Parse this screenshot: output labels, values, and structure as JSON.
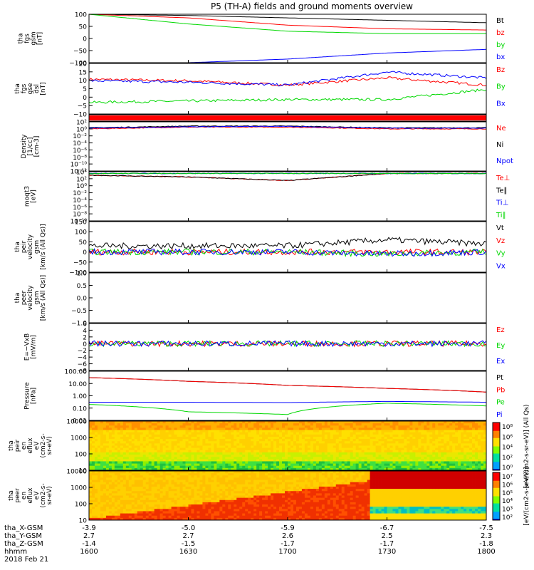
{
  "title": "P5 (TH-A) fields and ground moments overview",
  "x_axis": {
    "tick_labels": {
      "tha_X-GSM": [
        "-3.9",
        "-5.0",
        "-5.9",
        "-6.7",
        "-7.5"
      ],
      "tha_Y-GSM": [
        "2.7",
        "2.7",
        "2.6",
        "2.5",
        "2.3"
      ],
      "tha_Z-GSM": [
        "-1.4",
        "-1.5",
        "-1.7",
        "-1.7",
        "-1.8"
      ],
      "hhmm": [
        "1600",
        "1630",
        "1700",
        "1730",
        "1800"
      ]
    },
    "row_labels": [
      "tha_X-GSM",
      "tha_Y-GSM",
      "tha_Z-GSM",
      "hhmm"
    ],
    "date": "2018 Feb 21"
  },
  "colorbars": [
    {
      "label": "[eV/(cm2-s-sr-eV)] (All Qs)",
      "ticks": [
        "10⁸",
        "10⁶",
        "10⁴",
        "10²",
        "10⁰"
      ]
    },
    {
      "label": "[eV/(cm2-s-sr-eV)]",
      "ticks": [
        "10⁷",
        "10⁶",
        "10⁵",
        "10⁴",
        "10³",
        "10²"
      ]
    }
  ],
  "colors": {
    "black": "#000000",
    "red": "#ff0000",
    "green": "#00d800",
    "blue": "#0000ff"
  },
  "chart_data": [
    {
      "id": "fgs_gsm",
      "type": "line",
      "ylabel": [
        "tha",
        "fgs",
        "gsm",
        "[nT]"
      ],
      "ylim": [
        -100,
        100
      ],
      "yticks": [
        "100",
        "50",
        "0",
        "−50",
        "−100"
      ],
      "x": [
        1600,
        1630,
        1700,
        1730,
        1800
      ],
      "series": [
        {
          "name": "Bt",
          "color": "#000000",
          "values": [
            100,
            95,
            85,
            75,
            65
          ]
        },
        {
          "name": "bz",
          "color": "#ff0000",
          "values": [
            100,
            85,
            55,
            40,
            35
          ]
        },
        {
          "name": "by",
          "color": "#00d800",
          "values": [
            100,
            60,
            30,
            20,
            20
          ]
        },
        {
          "name": "bx",
          "color": "#0000ff",
          "values": [
            -100,
            -100,
            -85,
            -60,
            -45
          ]
        }
      ]
    },
    {
      "id": "fgs_gse",
      "type": "line",
      "ylabel": [
        "tha",
        "fgs",
        "gse",
        "dsl",
        "[nT]"
      ],
      "ylim": [
        -15,
        20
      ],
      "yticks": [
        "20",
        "15",
        "10",
        "5",
        "0",
        "−5",
        "−10"
      ],
      "x": [
        1600,
        1630,
        1700,
        1730,
        1800
      ],
      "series": [
        {
          "name": "Bz",
          "color": "#ff0000",
          "values": [
            9,
            8,
            5,
            10,
            5
          ]
        },
        {
          "name": "By",
          "color": "#00d800",
          "values": [
            -7,
            -6,
            -5,
            -5,
            2
          ]
        },
        {
          "name": "Bx",
          "color": "#0000ff",
          "values": [
            8,
            7,
            5,
            14,
            10
          ]
        }
      ]
    },
    {
      "id": "density",
      "type": "line",
      "ylabel": [
        "Density",
        "[1/cc]",
        "[cm-3]"
      ],
      "ylim": [
        -12,
        2
      ],
      "yticks": [
        "10²",
        "10⁰",
        "10⁻²",
        "10⁻⁴",
        "10⁻⁶",
        "10⁻⁸",
        "10⁻¹⁰",
        "10⁻¹²"
      ],
      "x": [
        1600,
        1630,
        1700,
        1730,
        1800
      ],
      "series": [
        {
          "name": "Ne",
          "color": "#ff0000",
          "values": [
            0,
            0.5,
            0.5,
            0,
            0
          ]
        },
        {
          "name": "Ni",
          "color": "#000000",
          "values": [
            0.3,
            0.8,
            0.8,
            0.3,
            0.3
          ]
        },
        {
          "name": "Npot",
          "color": "#0000ff",
          "values": [
            0.2,
            0.6,
            0.7,
            0.2,
            0.2
          ]
        }
      ]
    },
    {
      "id": "temperature",
      "type": "line",
      "ylabel": [
        "moqt3",
        "[eV]"
      ],
      "ylim": [
        -10,
        4
      ],
      "yticks": [
        "10⁴",
        "10²",
        "10⁰",
        "10⁻²",
        "10⁻⁴",
        "10⁻⁶",
        "10⁻⁸",
        "10⁻¹⁰"
      ],
      "x": [
        1600,
        1630,
        1700,
        1730,
        1800
      ],
      "series": [
        {
          "name": "Te⊥",
          "color": "#ff0000",
          "values": [
            3,
            2.5,
            1.5,
            3.5,
            3.5
          ]
        },
        {
          "name": "Te∥",
          "color": "#000000",
          "values": [
            3,
            2.5,
            1.5,
            3.5,
            3.5
          ]
        },
        {
          "name": "Ti⊥",
          "color": "#0000ff",
          "values": [
            3.5,
            3.5,
            3.5,
            3.5,
            3.5
          ]
        },
        {
          "name": "Ti∥",
          "color": "#00d800",
          "values": [
            3.5,
            3.5,
            3.5,
            3.5,
            3.5
          ]
        }
      ]
    },
    {
      "id": "peir_velocity",
      "type": "line",
      "ylabel": [
        "tha",
        "peir",
        "velocity",
        "gsm",
        "[km/s (All Qs)]"
      ],
      "ylim": [
        -100,
        150
      ],
      "yticks": [
        "150",
        "100",
        "50",
        "0",
        "−50",
        "−100"
      ],
      "x": [
        1600,
        1630,
        1700,
        1730,
        1800
      ],
      "series": [
        {
          "name": "Vt",
          "color": "#000000",
          "values": [
            30,
            30,
            30,
            60,
            40
          ]
        },
        {
          "name": "Vz",
          "color": "#ff0000",
          "values": [
            0,
            0,
            0,
            0,
            0
          ]
        },
        {
          "name": "Vy",
          "color": "#00d800",
          "values": [
            0,
            0,
            0,
            -10,
            0
          ]
        },
        {
          "name": "Vx",
          "color": "#0000ff",
          "values": [
            0,
            0,
            0,
            -10,
            0
          ]
        }
      ]
    },
    {
      "id": "peer_velocity",
      "type": "line",
      "ylabel": [
        "tha",
        "peer",
        "velocity",
        "gsm",
        "[km/s (All Qs)]"
      ],
      "ylim": [
        -1,
        1
      ],
      "yticks": [
        "1.0",
        "0.5",
        "0.0",
        "−0.5",
        "−1.0"
      ],
      "x": [],
      "series": [
        {
          "name": "Vt",
          "color": "#000000",
          "values": []
        },
        {
          "name": "Vz",
          "color": "#ff0000",
          "values": []
        },
        {
          "name": "Vy",
          "color": "#00d800",
          "values": []
        },
        {
          "name": "Vx",
          "color": "#0000ff",
          "values": []
        }
      ]
    },
    {
      "id": "efield",
      "type": "line",
      "ylabel": [
        "E=−VxB",
        "[mV/m]"
      ],
      "ylim": [
        -8,
        6
      ],
      "yticks": [
        "6",
        "4",
        "2",
        "0",
        "−2",
        "−4",
        "−6",
        "−8"
      ],
      "x": [
        1600,
        1630,
        1700,
        1730,
        1800
      ],
      "series": [
        {
          "name": "Ez",
          "color": "#ff0000",
          "values": [
            0,
            0,
            0,
            0,
            0
          ]
        },
        {
          "name": "Ey",
          "color": "#00d800",
          "values": [
            0,
            0,
            0,
            0,
            0
          ]
        },
        {
          "name": "Ex",
          "color": "#0000ff",
          "values": [
            0,
            0,
            0,
            0,
            0
          ]
        }
      ]
    },
    {
      "id": "pressure",
      "type": "line",
      "ylabel": [
        "Pressure",
        "[nPa]"
      ],
      "ylim": [
        0.01,
        100
      ],
      "yscale": "log",
      "yticks": [
        "100.00",
        "10.00",
        "1.00",
        "0.10",
        "0.01"
      ],
      "x": [
        1600,
        1630,
        1700,
        1730,
        1800
      ],
      "series": [
        {
          "name": "Pt",
          "color": "#000000",
          "values": [
            30,
            15,
            7,
            4,
            2
          ]
        },
        {
          "name": "Pb",
          "color": "#ff0000",
          "values": [
            30,
            15,
            7,
            4,
            2
          ]
        },
        {
          "name": "Pe",
          "color": "#00d800",
          "values": [
            0.2,
            0.05,
            0.03,
            0.25,
            0.15
          ]
        },
        {
          "name": "Pi",
          "color": "#0000ff",
          "values": [
            0.3,
            0.3,
            0.28,
            0.35,
            0.3
          ]
        }
      ]
    },
    {
      "id": "peir_spectrogram",
      "type": "heatmap",
      "ylabel": [
        "tha",
        "peir",
        "en",
        "eflux",
        "eV",
        "(cm2-s-",
        "sr-eV)"
      ],
      "yscale": "log",
      "yticks": [
        "10000",
        "1000",
        "100",
        "10"
      ]
    },
    {
      "id": "peer_spectrogram",
      "type": "heatmap",
      "ylabel": [
        "tha",
        "peer",
        "en",
        "eflux",
        "eV",
        "(cm2-s-",
        "sr-eV)"
      ],
      "yscale": "log",
      "yticks": [
        "10000",
        "1000",
        "100",
        "10"
      ]
    }
  ]
}
